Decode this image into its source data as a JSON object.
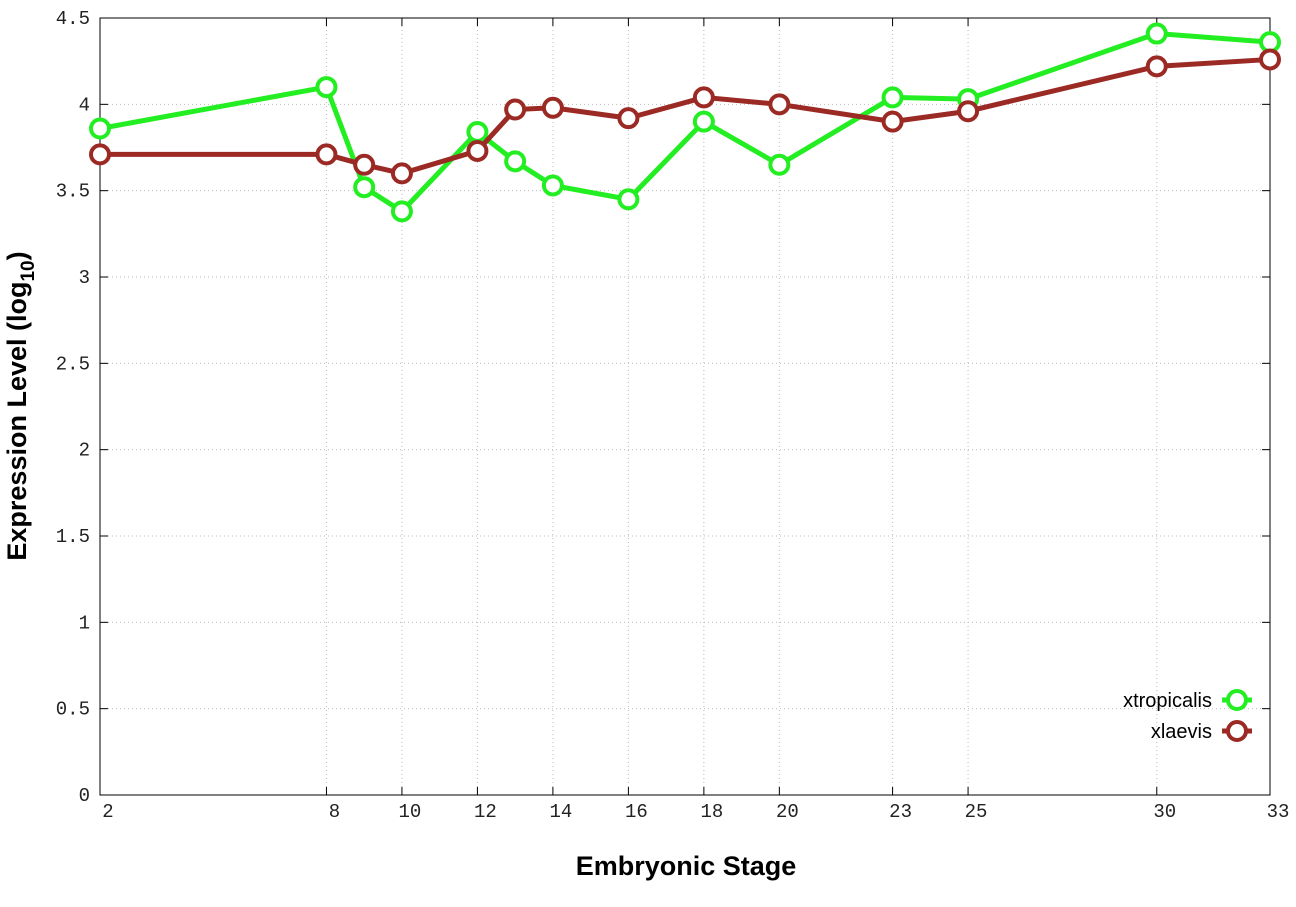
{
  "chart_data": {
    "type": "line",
    "x_label": "Embryonic Stage",
    "y_label": [
      "Expression Level (log",
      "10",
      ")"
    ],
    "x": [
      2,
      8,
      9,
      10,
      12,
      13,
      14,
      16,
      18,
      20,
      23,
      25,
      30,
      33
    ],
    "series": [
      {
        "name": "xtropicalis",
        "color": "#22ee22",
        "values": [
          3.86,
          4.1,
          3.52,
          3.38,
          3.84,
          3.67,
          3.53,
          3.45,
          3.9,
          3.65,
          4.04,
          4.03,
          4.41,
          4.36
        ]
      },
      {
        "name": "xlaevis",
        "color": "#9b2a25",
        "values": [
          3.71,
          3.71,
          3.65,
          3.6,
          3.73,
          3.97,
          3.98,
          3.92,
          4.04,
          4.0,
          3.9,
          3.96,
          4.22,
          4.26
        ]
      }
    ],
    "xlim": [
      2,
      33
    ],
    "xticks": [
      2,
      8,
      10,
      12,
      14,
      16,
      18,
      20,
      23,
      25,
      30,
      33
    ],
    "ylim": [
      0,
      4.5
    ],
    "yticks": [
      0,
      0.5,
      1,
      1.5,
      2,
      2.5,
      3,
      3.5,
      4,
      4.5
    ],
    "grid": true,
    "legend": "lower-right"
  }
}
